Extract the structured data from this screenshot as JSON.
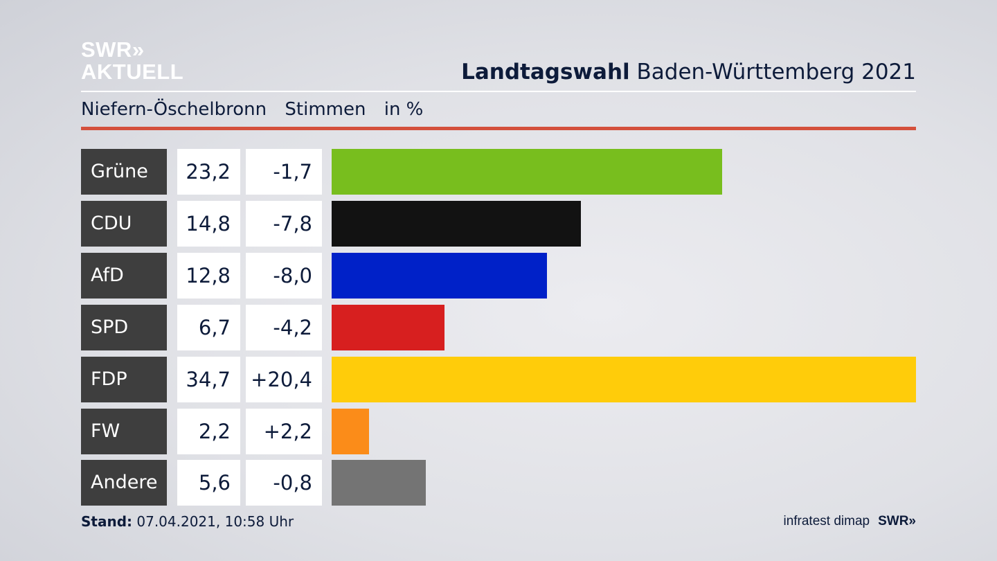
{
  "logo": {
    "line1": "SWR»",
    "line2": "AKTUELL"
  },
  "title": {
    "bold": "Landtagswahl",
    "rest": " Baden-Württemberg 2021"
  },
  "subtitle": {
    "place": "Niefern-Öschelbronn",
    "measure": "Stimmen",
    "unit": "in %"
  },
  "footer": {
    "stand_label": "Stand:",
    "stand_value": " 07.04.2021, 10:58 Uhr",
    "source": "infratest dimap",
    "brand": "SWR»"
  },
  "chart_data": {
    "type": "bar",
    "title": "Landtagswahl Baden-Württemberg 2021",
    "subtitle": "Niefern-Öschelbronn Stimmen in %",
    "categories": [
      "Grüne",
      "CDU",
      "AfD",
      "SPD",
      "FDP",
      "FW",
      "Andere"
    ],
    "values": [
      23.2,
      14.8,
      12.8,
      6.7,
      34.7,
      2.2,
      5.6
    ],
    "value_labels": [
      "23,2",
      "14,8",
      "12,8",
      "6,7",
      "34,7",
      "2,2",
      "5,6"
    ],
    "changes": [
      "-1,7",
      "-7,8",
      "-8,0",
      "-4,2",
      "+20,4",
      "+2,2",
      "-0,8"
    ],
    "colors": [
      "#78be1e",
      "#121212",
      "#0021c8",
      "#d71f1f",
      "#ffcc0a",
      "#fb8c19",
      "#747474"
    ],
    "xlim": [
      0,
      34.7
    ],
    "orientation": "horizontal"
  }
}
